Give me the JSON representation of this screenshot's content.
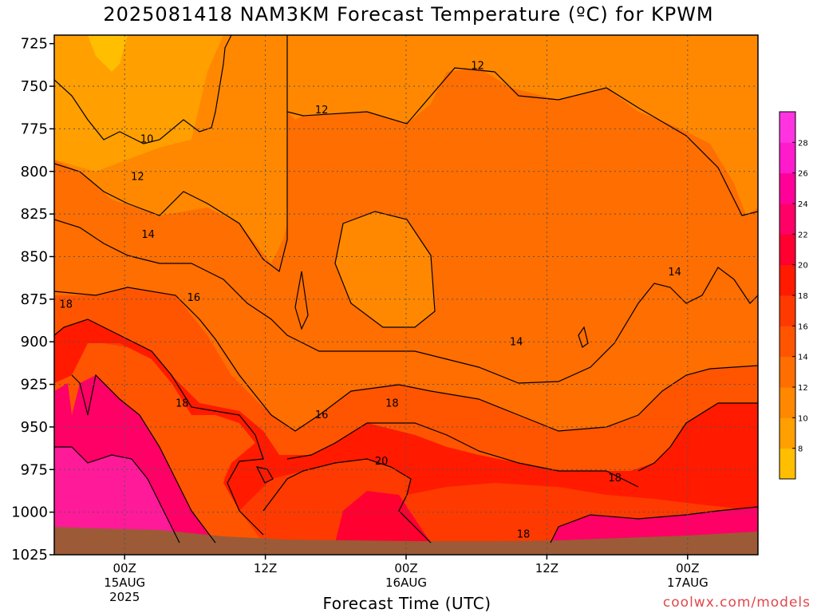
{
  "chart_data": {
    "type": "heatmap",
    "title": "2025081418 NAM3KM Forecast Temperature (ºC) for KPWM",
    "xlabel": "Forecast Time (UTC)",
    "ylabel": "",
    "y_scale": "pressure (reversed)",
    "ylim": [
      1025,
      720
    ],
    "y_ticks": [
      "725",
      "750",
      "775",
      "800",
      "825",
      "850",
      "875",
      "900",
      "925",
      "950",
      "975",
      "1000",
      "1025"
    ],
    "x_ticks": [
      {
        "hours": 6,
        "lines": [
          "00Z",
          "15AUG",
          "2025"
        ]
      },
      {
        "hours": 18,
        "lines": [
          "12Z"
        ]
      },
      {
        "hours": 30,
        "lines": [
          "00Z",
          "16AUG"
        ]
      },
      {
        "hours": 42,
        "lines": [
          "12Z"
        ]
      },
      {
        "hours": 54,
        "lines": [
          "00Z",
          "17AUG"
        ]
      }
    ],
    "xlim_hours": [
      0,
      60
    ],
    "grid": true,
    "colorbar": {
      "ticks": [
        "28",
        "26",
        "24",
        "22",
        "20",
        "18",
        "16",
        "14",
        "12",
        "10",
        "8"
      ],
      "colors": [
        "#ffbf00",
        "#ff9f00",
        "#ff8800",
        "#ff6e00",
        "#ff5500",
        "#ff3a00",
        "#ff1a00",
        "#ff0030",
        "#ff0066",
        "#ff0099",
        "#ff1acc",
        "#ff33e0"
      ]
    },
    "contour_labels": [
      {
        "text": "10",
        "hours": 7.9,
        "hpa": 783
      },
      {
        "text": "12",
        "hours": 7.1,
        "hpa": 805
      },
      {
        "text": "14",
        "hours": 8.0,
        "hpa": 839
      },
      {
        "text": "16",
        "hours": 11.9,
        "hpa": 876
      },
      {
        "text": "18",
        "hours": 1.0,
        "hpa": 880
      },
      {
        "text": "18",
        "hours": 10.9,
        "hpa": 938
      },
      {
        "text": "12",
        "hours": 22.8,
        "hpa": 766
      },
      {
        "text": "12",
        "hours": 36.1,
        "hpa": 740
      },
      {
        "text": "16",
        "hours": 22.8,
        "hpa": 945
      },
      {
        "text": "18",
        "hours": 28.8,
        "hpa": 938
      },
      {
        "text": "20",
        "hours": 27.9,
        "hpa": 972
      },
      {
        "text": "14",
        "hours": 39.4,
        "hpa": 902
      },
      {
        "text": "14",
        "hours": 52.9,
        "hpa": 861
      },
      {
        "text": "18",
        "hours": 40.0,
        "hpa": 1015
      },
      {
        "text": "18",
        "hours": 47.8,
        "hpa": 982
      }
    ],
    "ground_hpa": 1012,
    "band_colors": {
      "t8": "#ffbf00",
      "t10": "#ff9f00",
      "t12": "#ff8800",
      "t14": "#ff6e00",
      "t16": "#ff5500",
      "t18": "#ff3a00",
      "t20": "#ff1a00",
      "t22": "#ff0066",
      "t24": "#ff1a99",
      "ground": "#9c5a37"
    }
  },
  "credit": "coolwx.com/models"
}
